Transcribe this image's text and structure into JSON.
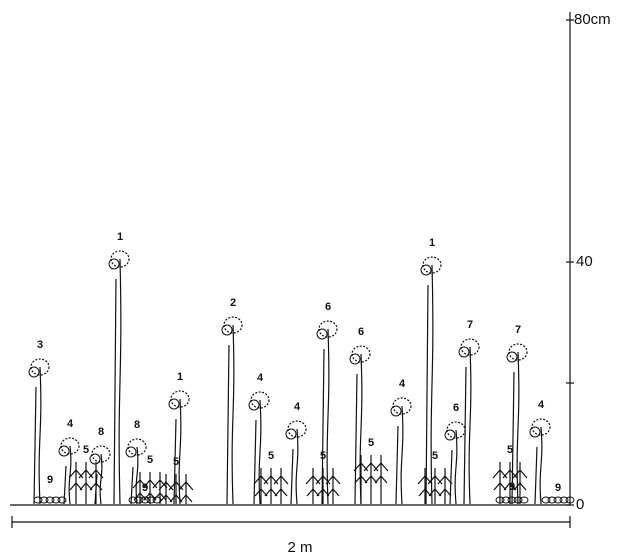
{
  "scale": {
    "ticks": [
      "80cm",
      "40",
      "0"
    ],
    "width_label": "2 m"
  },
  "plant_labels": [
    "1",
    "1",
    "1",
    "2",
    "3",
    "4",
    "4",
    "4",
    "4",
    "4",
    "5",
    "5",
    "5",
    "5",
    "5",
    "5",
    "5",
    "5",
    "6",
    "6",
    "6",
    "7",
    "7",
    "8",
    "8",
    "9",
    "9",
    "9",
    "9"
  ]
}
